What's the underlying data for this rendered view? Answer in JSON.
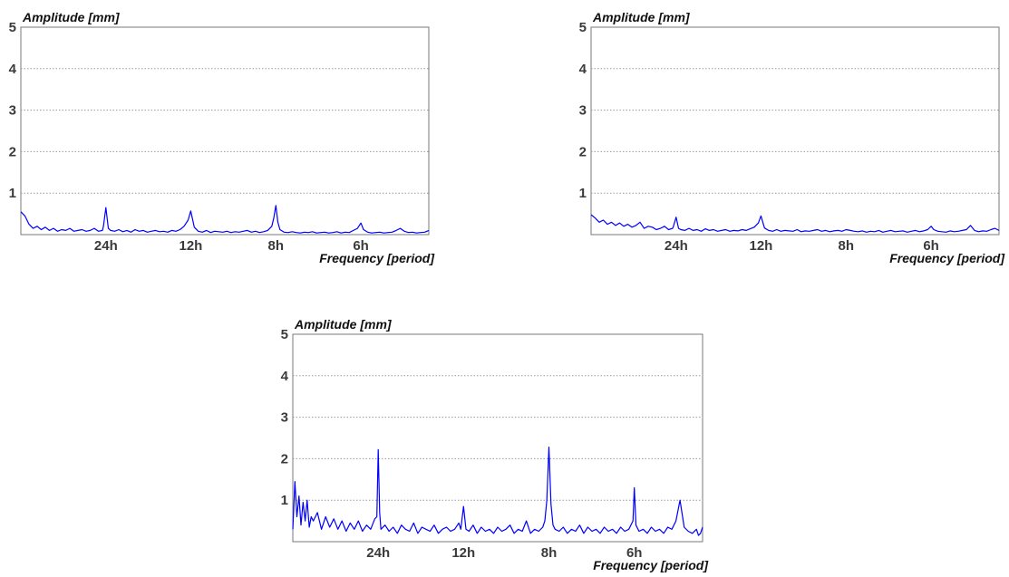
{
  "chart_data": [
    {
      "type": "line",
      "ylabel": "Amplitude [mm]",
      "xlabel": "Frequency [period]",
      "ylim": [
        0,
        5
      ],
      "yticks": [
        1,
        2,
        3,
        4,
        5
      ],
      "xlim": [
        0,
        0.2
      ],
      "xticks": [
        {
          "value": 0.0417,
          "label": "24h"
        },
        {
          "value": 0.0833,
          "label": "12h"
        },
        {
          "value": 0.125,
          "label": "8h"
        },
        {
          "value": 0.1667,
          "label": "6h"
        }
      ],
      "grid": "horizontal",
      "line_color": "#0000ff",
      "series": [
        {
          "x": [
            0.0,
            0.002,
            0.004,
            0.006,
            0.008,
            0.01,
            0.012,
            0.014,
            0.016,
            0.018,
            0.02,
            0.022,
            0.024,
            0.026,
            0.028,
            0.03,
            0.032,
            0.034,
            0.036,
            0.038,
            0.04,
            0.0405,
            0.0417,
            0.0429,
            0.044,
            0.046,
            0.048,
            0.05,
            0.052,
            0.054,
            0.056,
            0.058,
            0.06,
            0.062,
            0.064,
            0.066,
            0.068,
            0.07,
            0.072,
            0.074,
            0.076,
            0.078,
            0.08,
            0.082,
            0.0833,
            0.085,
            0.087,
            0.089,
            0.091,
            0.093,
            0.095,
            0.097,
            0.099,
            0.101,
            0.103,
            0.105,
            0.107,
            0.109,
            0.111,
            0.113,
            0.115,
            0.117,
            0.119,
            0.121,
            0.123,
            0.124,
            0.125,
            0.126,
            0.127,
            0.129,
            0.131,
            0.133,
            0.135,
            0.137,
            0.139,
            0.141,
            0.143,
            0.145,
            0.147,
            0.149,
            0.151,
            0.153,
            0.155,
            0.157,
            0.159,
            0.161,
            0.163,
            0.165,
            0.1667,
            0.168,
            0.17,
            0.172,
            0.174,
            0.176,
            0.178,
            0.18,
            0.182,
            0.184,
            0.186,
            0.188,
            0.19,
            0.192,
            0.194,
            0.196,
            0.198,
            0.2
          ],
          "y": [
            0.55,
            0.45,
            0.25,
            0.15,
            0.2,
            0.12,
            0.18,
            0.1,
            0.15,
            0.08,
            0.12,
            0.1,
            0.15,
            0.08,
            0.1,
            0.12,
            0.08,
            0.1,
            0.15,
            0.08,
            0.1,
            0.2,
            0.65,
            0.15,
            0.1,
            0.08,
            0.12,
            0.07,
            0.1,
            0.06,
            0.12,
            0.08,
            0.1,
            0.06,
            0.08,
            0.1,
            0.07,
            0.08,
            0.06,
            0.1,
            0.08,
            0.12,
            0.2,
            0.35,
            0.57,
            0.18,
            0.08,
            0.06,
            0.1,
            0.05,
            0.08,
            0.07,
            0.06,
            0.08,
            0.05,
            0.07,
            0.06,
            0.08,
            0.1,
            0.06,
            0.08,
            0.05,
            0.07,
            0.1,
            0.2,
            0.4,
            0.7,
            0.3,
            0.12,
            0.06,
            0.05,
            0.07,
            0.05,
            0.04,
            0.06,
            0.05,
            0.07,
            0.04,
            0.05,
            0.06,
            0.04,
            0.05,
            0.07,
            0.04,
            0.06,
            0.05,
            0.1,
            0.15,
            0.28,
            0.12,
            0.06,
            0.04,
            0.05,
            0.06,
            0.04,
            0.05,
            0.06,
            0.1,
            0.15,
            0.08,
            0.05,
            0.06,
            0.04,
            0.05,
            0.06,
            0.1
          ]
        }
      ]
    },
    {
      "type": "line",
      "ylabel": "Amplitude [mm]",
      "xlabel": "Frequency [period]",
      "ylim": [
        0,
        5
      ],
      "yticks": [
        1,
        2,
        3,
        4,
        5
      ],
      "xlim": [
        0,
        0.2
      ],
      "xticks": [
        {
          "value": 0.0417,
          "label": "24h"
        },
        {
          "value": 0.0833,
          "label": "12h"
        },
        {
          "value": 0.125,
          "label": "8h"
        },
        {
          "value": 0.1667,
          "label": "6h"
        }
      ],
      "grid": "horizontal",
      "line_color": "#0000ff",
      "series": [
        {
          "x": [
            0.0,
            0.002,
            0.004,
            0.006,
            0.008,
            0.01,
            0.012,
            0.014,
            0.016,
            0.018,
            0.02,
            0.022,
            0.024,
            0.026,
            0.028,
            0.03,
            0.032,
            0.034,
            0.036,
            0.038,
            0.04,
            0.0405,
            0.0417,
            0.0429,
            0.044,
            0.046,
            0.048,
            0.05,
            0.052,
            0.054,
            0.056,
            0.058,
            0.06,
            0.062,
            0.064,
            0.066,
            0.068,
            0.07,
            0.072,
            0.074,
            0.076,
            0.078,
            0.08,
            0.082,
            0.0833,
            0.085,
            0.087,
            0.089,
            0.091,
            0.093,
            0.095,
            0.097,
            0.099,
            0.101,
            0.103,
            0.105,
            0.107,
            0.109,
            0.111,
            0.113,
            0.115,
            0.117,
            0.119,
            0.121,
            0.123,
            0.125,
            0.127,
            0.129,
            0.131,
            0.133,
            0.135,
            0.137,
            0.139,
            0.141,
            0.143,
            0.145,
            0.147,
            0.149,
            0.151,
            0.153,
            0.155,
            0.157,
            0.159,
            0.161,
            0.163,
            0.165,
            0.1667,
            0.168,
            0.17,
            0.172,
            0.174,
            0.176,
            0.178,
            0.18,
            0.182,
            0.184,
            0.186,
            0.188,
            0.19,
            0.192,
            0.194,
            0.196,
            0.198,
            0.2
          ],
          "y": [
            0.48,
            0.4,
            0.3,
            0.35,
            0.25,
            0.3,
            0.22,
            0.28,
            0.2,
            0.25,
            0.18,
            0.22,
            0.3,
            0.15,
            0.2,
            0.18,
            0.12,
            0.15,
            0.2,
            0.12,
            0.15,
            0.22,
            0.42,
            0.15,
            0.12,
            0.1,
            0.15,
            0.1,
            0.12,
            0.08,
            0.14,
            0.1,
            0.12,
            0.08,
            0.1,
            0.12,
            0.08,
            0.1,
            0.09,
            0.12,
            0.1,
            0.14,
            0.18,
            0.28,
            0.45,
            0.16,
            0.1,
            0.08,
            0.12,
            0.08,
            0.1,
            0.09,
            0.08,
            0.12,
            0.07,
            0.09,
            0.08,
            0.1,
            0.12,
            0.08,
            0.1,
            0.07,
            0.09,
            0.1,
            0.08,
            0.12,
            0.1,
            0.08,
            0.07,
            0.09,
            0.06,
            0.08,
            0.07,
            0.1,
            0.06,
            0.08,
            0.1,
            0.07,
            0.08,
            0.09,
            0.06,
            0.08,
            0.1,
            0.07,
            0.09,
            0.12,
            0.2,
            0.12,
            0.08,
            0.07,
            0.06,
            0.09,
            0.07,
            0.08,
            0.1,
            0.12,
            0.22,
            0.1,
            0.07,
            0.09,
            0.08,
            0.12,
            0.15,
            0.1
          ]
        }
      ]
    },
    {
      "type": "line",
      "ylabel": "Amplitude [mm]",
      "xlabel": "Frequency [period]",
      "ylim": [
        0,
        5
      ],
      "yticks": [
        1,
        2,
        3,
        4,
        5
      ],
      "xlim": [
        0,
        0.2
      ],
      "xticks": [
        {
          "value": 0.0417,
          "label": "24h"
        },
        {
          "value": 0.0833,
          "label": "12h"
        },
        {
          "value": 0.125,
          "label": "8h"
        },
        {
          "value": 0.1667,
          "label": "6h"
        }
      ],
      "grid": "horizontal",
      "line_color": "#0000ff",
      "series": [
        {
          "x": [
            0.0,
            0.001,
            0.002,
            0.003,
            0.004,
            0.005,
            0.006,
            0.007,
            0.008,
            0.009,
            0.01,
            0.012,
            0.014,
            0.016,
            0.018,
            0.02,
            0.022,
            0.024,
            0.026,
            0.028,
            0.03,
            0.032,
            0.034,
            0.036,
            0.038,
            0.04,
            0.041,
            0.0417,
            0.0424,
            0.043,
            0.045,
            0.047,
            0.049,
            0.051,
            0.053,
            0.055,
            0.057,
            0.059,
            0.061,
            0.063,
            0.065,
            0.067,
            0.069,
            0.071,
            0.073,
            0.075,
            0.077,
            0.079,
            0.081,
            0.082,
            0.0833,
            0.0845,
            0.086,
            0.088,
            0.09,
            0.092,
            0.094,
            0.096,
            0.098,
            0.1,
            0.102,
            0.104,
            0.106,
            0.108,
            0.11,
            0.112,
            0.114,
            0.116,
            0.118,
            0.12,
            0.122,
            0.123,
            0.124,
            0.125,
            0.126,
            0.127,
            0.128,
            0.13,
            0.132,
            0.134,
            0.136,
            0.138,
            0.14,
            0.142,
            0.144,
            0.146,
            0.148,
            0.15,
            0.152,
            0.154,
            0.156,
            0.158,
            0.16,
            0.162,
            0.164,
            0.166,
            0.1667,
            0.1675,
            0.169,
            0.171,
            0.173,
            0.175,
            0.177,
            0.179,
            0.181,
            0.183,
            0.185,
            0.187,
            0.189,
            0.191,
            0.193,
            0.195,
            0.197,
            0.198,
            0.199,
            0.2
          ],
          "y": [
            0.3,
            1.45,
            0.6,
            1.1,
            0.4,
            0.95,
            0.5,
            1.0,
            0.35,
            0.6,
            0.5,
            0.7,
            0.3,
            0.6,
            0.35,
            0.55,
            0.3,
            0.5,
            0.25,
            0.45,
            0.3,
            0.5,
            0.25,
            0.4,
            0.3,
            0.55,
            0.6,
            2.22,
            0.7,
            0.3,
            0.4,
            0.25,
            0.35,
            0.2,
            0.4,
            0.3,
            0.25,
            0.45,
            0.2,
            0.35,
            0.3,
            0.25,
            0.4,
            0.2,
            0.3,
            0.35,
            0.25,
            0.3,
            0.45,
            0.3,
            0.85,
            0.3,
            0.25,
            0.4,
            0.2,
            0.35,
            0.25,
            0.3,
            0.2,
            0.35,
            0.25,
            0.3,
            0.4,
            0.2,
            0.3,
            0.25,
            0.5,
            0.2,
            0.3,
            0.25,
            0.35,
            0.5,
            1.0,
            2.28,
            0.9,
            0.4,
            0.3,
            0.25,
            0.35,
            0.2,
            0.3,
            0.25,
            0.4,
            0.2,
            0.35,
            0.25,
            0.3,
            0.2,
            0.35,
            0.25,
            0.3,
            0.2,
            0.35,
            0.25,
            0.3,
            0.5,
            1.3,
            0.4,
            0.25,
            0.3,
            0.2,
            0.35,
            0.25,
            0.3,
            0.2,
            0.35,
            0.3,
            0.5,
            1.0,
            0.35,
            0.25,
            0.2,
            0.3,
            0.15,
            0.2,
            0.35
          ]
        }
      ]
    }
  ]
}
